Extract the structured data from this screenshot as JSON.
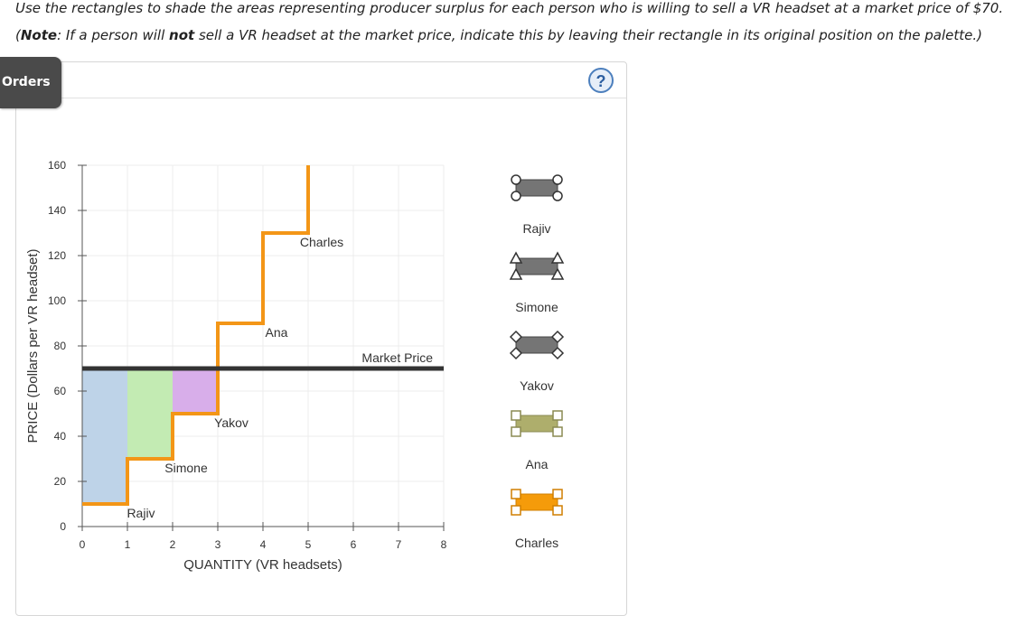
{
  "instructions": {
    "line1": "Use the rectangles to shade the areas representing producer surplus for each person who is willing to sell a VR headset at a market price of $70.",
    "line2_prefix": "(",
    "line2_note": "Note",
    "line2_mid": ": If a person will ",
    "line2_not": "not",
    "line2_suffix": " sell a VR headset at the market price, indicate this by leaving their rectangle in its original position on the palette.)"
  },
  "orders_tab": "Orders",
  "help_icon": "?",
  "chart_data": {
    "type": "line",
    "xlabel": "QUANTITY (VR headsets)",
    "ylabel": "PRICE (Dollars per VR headset)",
    "xlim": [
      0,
      8
    ],
    "ylim": [
      0,
      160
    ],
    "x_ticks": [
      0,
      1,
      2,
      3,
      4,
      5,
      6,
      7,
      8
    ],
    "y_ticks": [
      0,
      20,
      40,
      60,
      80,
      100,
      120,
      140,
      160
    ],
    "grid": true,
    "supply_steps": [
      {
        "name": "Rajiv",
        "x_start": 0,
        "x_end": 1,
        "price": 10
      },
      {
        "name": "Simone",
        "x_start": 1,
        "x_end": 2,
        "price": 30
      },
      {
        "name": "Yakov",
        "x_start": 2,
        "x_end": 3,
        "price": 50
      },
      {
        "name": "Ana",
        "x_start": 3,
        "x_end": 4,
        "price": 90
      },
      {
        "name": "Charles",
        "x_start": 4,
        "x_end": 5,
        "price": 130
      }
    ],
    "supply_top": 160,
    "step_labels": [
      {
        "text": "Rajiv",
        "x": 1.3,
        "y": 4
      },
      {
        "text": "Simone",
        "x": 2.3,
        "y": 24
      },
      {
        "text": "Yakov",
        "x": 3.3,
        "y": 44
      },
      {
        "text": "Ana",
        "x": 4.3,
        "y": 84
      },
      {
        "text": "Charles",
        "x": 5.3,
        "y": 124
      }
    ],
    "market_price": 70,
    "market_price_label": "Market Price",
    "surplus_areas": [
      {
        "name": "Rajiv",
        "x0": 0,
        "x1": 1,
        "y0": 10,
        "y1": 70,
        "color": "#bed3e8"
      },
      {
        "name": "Simone",
        "x0": 1,
        "x1": 2,
        "y0": 30,
        "y1": 70,
        "color": "#c3ebb3"
      },
      {
        "name": "Yakov",
        "x0": 2,
        "x1": 3,
        "y0": 50,
        "y1": 70,
        "color": "#d8aeea"
      }
    ],
    "supply_color": "#f39617",
    "market_color": "#333333"
  },
  "palette": {
    "items": [
      {
        "name": "Rajiv",
        "handle": "circle",
        "fill": "#757575",
        "stroke": "#444444"
      },
      {
        "name": "Simone",
        "handle": "triangle",
        "fill": "#757575",
        "stroke": "#444444"
      },
      {
        "name": "Yakov",
        "handle": "diamond",
        "fill": "#757575",
        "stroke": "#444444"
      },
      {
        "name": "Ana",
        "handle": "square",
        "fill": "#aeae6c",
        "stroke": "#8a8a52"
      },
      {
        "name": "Charles",
        "handle": "square",
        "fill": "#f59b0a",
        "stroke": "#d07f00"
      }
    ]
  }
}
